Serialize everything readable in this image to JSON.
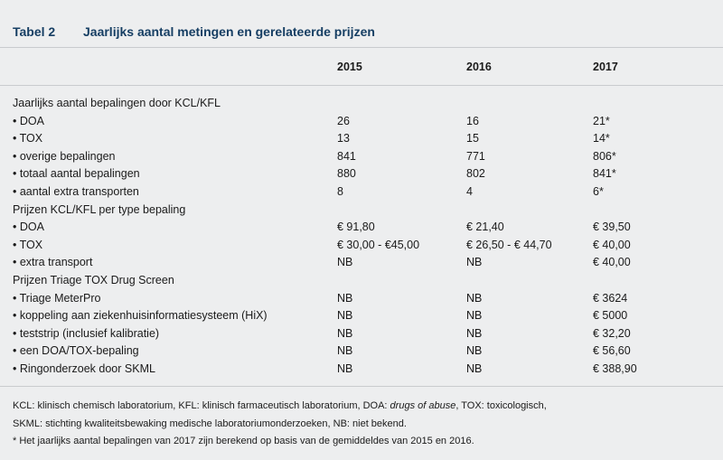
{
  "table": {
    "label": "Tabel 2",
    "title": "Jaarlijks aantal metingen en gerelateerde prijzen",
    "columns": [
      "2015",
      "2016",
      "2017"
    ],
    "rows": [
      {
        "label": "Jaarlijks aantal bepalingen door KCL/KFL",
        "v2015": "",
        "v2016": "",
        "v2017": ""
      },
      {
        "label": "• DOA",
        "v2015": "26",
        "v2016": "16",
        "v2017": "21*"
      },
      {
        "label": "• TOX",
        "v2015": "13",
        "v2016": "15",
        "v2017": "14*"
      },
      {
        "label": "• overige bepalingen",
        "v2015": "841",
        "v2016": "771",
        "v2017": "806*"
      },
      {
        "label": "• totaal aantal bepalingen",
        "v2015": "880",
        "v2016": "802",
        "v2017": "841*"
      },
      {
        "label": "• aantal extra transporten",
        "v2015": "8",
        "v2016": "4",
        "v2017": "6*"
      },
      {
        "label": "Prijzen KCL/KFL per type bepaling",
        "v2015": "",
        "v2016": "",
        "v2017": ""
      },
      {
        "label": "• DOA",
        "v2015": "€ 91,80",
        "v2016": "€ 21,40",
        "v2017": "€ 39,50"
      },
      {
        "label": "• TOX",
        "v2015": "€ 30,00 - €45,00",
        "v2016": "€ 26,50 - € 44,70",
        "v2017": "€ 40,00"
      },
      {
        "label": "• extra transport",
        "v2015": "NB",
        "v2016": "NB",
        "v2017": "€ 40,00"
      },
      {
        "label": "Prijzen Triage TOX Drug Screen",
        "v2015": "",
        "v2016": "",
        "v2017": ""
      },
      {
        "label": "• Triage MeterPro",
        "v2015": "NB",
        "v2016": "NB",
        "v2017": "€ 3624"
      },
      {
        "label": "• koppeling aan ziekenhuisinformatiesysteem (HiX)",
        "v2015": "NB",
        "v2016": "NB",
        "v2017": "€ 5000"
      },
      {
        "label": "• teststrip (inclusief kalibratie)",
        "v2015": "NB",
        "v2016": "NB",
        "v2017": "€ 32,20"
      },
      {
        "label": "• een DOA/TOX-bepaling",
        "v2015": "NB",
        "v2016": "NB",
        "v2017": "€ 56,60"
      },
      {
        "label": "• Ringonderzoek door SKML",
        "v2015": "NB",
        "v2016": "NB",
        "v2017": "€ 388,90"
      }
    ]
  },
  "footnotes": {
    "line1_a": "KCL: klinisch chemisch laboratorium, KFL: klinisch farmaceutisch laboratorium, DOA: ",
    "line1_em": "drugs of abuse",
    "line1_b": ", TOX: toxicologisch,",
    "line2": "SKML: stichting kwaliteitsbewaking medische laboratoriumonderzoeken, NB: niet bekend.",
    "line3": "* Het jaarlijks aantal bepalingen van 2017 zijn berekend op basis van de gemiddeldes van 2015 en 2016."
  }
}
